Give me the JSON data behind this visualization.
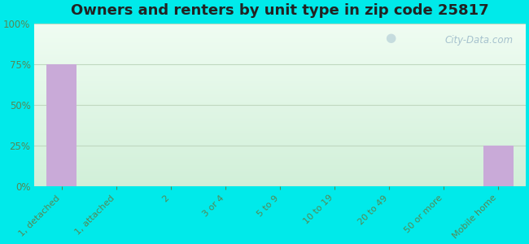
{
  "title": "Owners and renters by unit type in zip code 25817",
  "categories": [
    "1, detached",
    "1, attached",
    "2",
    "3 or 4",
    "5 to 9",
    "10 to 19",
    "20 to 49",
    "50 or more",
    "Mobile home"
  ],
  "values": [
    75,
    0,
    0,
    0,
    0,
    0,
    0,
    0,
    25
  ],
  "bar_color": "#c9aad8",
  "yticks": [
    0,
    25,
    50,
    75,
    100
  ],
  "ytick_labels": [
    "0%",
    "25%",
    "50%",
    "75%",
    "100%"
  ],
  "ylim": [
    0,
    100
  ],
  "bg_outer": "#00eaea",
  "title_fontsize": 13,
  "watermark": "City-Data.com",
  "grid_color": "#c0d8c0",
  "tick_color": "#558855",
  "title_color": "#222222"
}
